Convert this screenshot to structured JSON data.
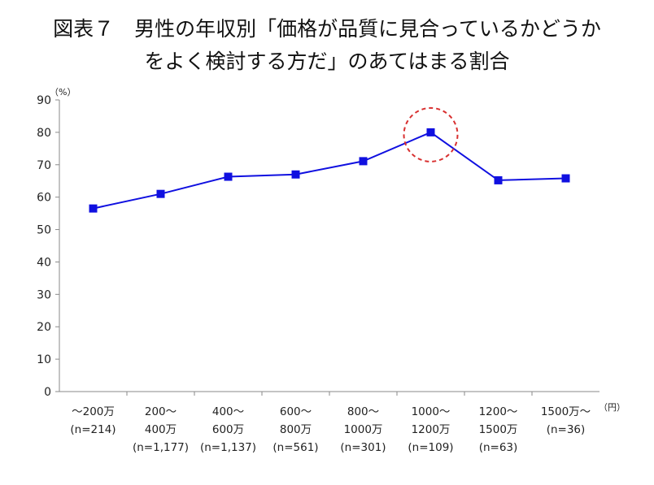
{
  "title": {
    "line1": "図表７　男性の年収別「価格が品質に見合っているかどうか",
    "line2": "をよく検討する方だ」のあてはまる割合"
  },
  "chart_data": {
    "type": "line",
    "y_unit": "（%）",
    "x_unit": "（円）",
    "ylim": [
      0,
      90
    ],
    "yticks": [
      0,
      10,
      20,
      30,
      40,
      50,
      60,
      70,
      80,
      90
    ],
    "grid": false,
    "categories": [
      [
        "～200万",
        "(n=214)"
      ],
      [
        "200～",
        "400万",
        "(n=1,177)"
      ],
      [
        "400～",
        "600万",
        "(n=1,137)"
      ],
      [
        "600～",
        "800万",
        "(n=561)"
      ],
      [
        "800～",
        "1000万",
        "(n=301)"
      ],
      [
        "1000～",
        "1200万",
        "(n=109)"
      ],
      [
        "1200～",
        "1500万",
        "(n=63)"
      ],
      [
        "1500万～",
        "(n=36)"
      ]
    ],
    "series": [
      {
        "values": [
          56.5,
          61,
          66.3,
          67,
          71.1,
          80,
          65.2,
          65.8
        ],
        "color": "#1010e0"
      }
    ],
    "highlight_index": 5,
    "highlight_color": "#d83030"
  }
}
